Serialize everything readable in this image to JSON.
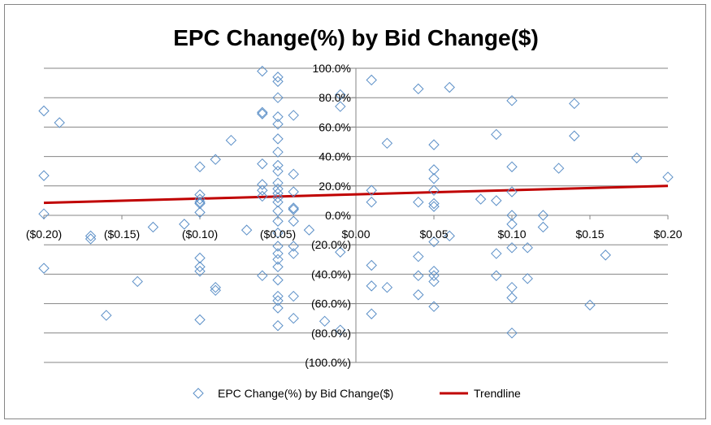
{
  "chart_data": {
    "type": "scatter",
    "title": "EPC Change(%) by Bid Change($)",
    "xlabel": "",
    "ylabel": "",
    "xlim": [
      -0.2,
      0.2
    ],
    "ylim": [
      -100,
      100
    ],
    "x_ticks": [
      {
        "value": -0.2,
        "label": "($0.20)"
      },
      {
        "value": -0.15,
        "label": "($0.15)"
      },
      {
        "value": -0.1,
        "label": "($0.10)"
      },
      {
        "value": -0.05,
        "label": "($0.05)"
      },
      {
        "value": 0.0,
        "label": "$0.00"
      },
      {
        "value": 0.05,
        "label": "$0.05"
      },
      {
        "value": 0.1,
        "label": "$0.10"
      },
      {
        "value": 0.15,
        "label": "$0.15"
      },
      {
        "value": 0.2,
        "label": "$0.20"
      }
    ],
    "y_ticks": [
      {
        "value": 100,
        "label": "100.0%"
      },
      {
        "value": 80,
        "label": "80.0%"
      },
      {
        "value": 60,
        "label": "60.0%"
      },
      {
        "value": 40,
        "label": "40.0%"
      },
      {
        "value": 20,
        "label": "20.0%"
      },
      {
        "value": 0,
        "label": "0.0%"
      },
      {
        "value": -20,
        "label": "(20.0%)"
      },
      {
        "value": -40,
        "label": "(40.0%)"
      },
      {
        "value": -60,
        "label": "(60.0%)"
      },
      {
        "value": -80,
        "label": "(80.0%)"
      },
      {
        "value": -100,
        "label": "(100.0%)"
      }
    ],
    "grid": "horizontal",
    "legend_position": "bottom",
    "series": [
      {
        "name": "EPC Change(%) by Bid Change($)",
        "kind": "scatter",
        "marker": "diamond-outline",
        "color": "#5b8fc7",
        "points": [
          [
            -0.2,
            71
          ],
          [
            -0.19,
            63
          ],
          [
            -0.2,
            27
          ],
          [
            -0.2,
            1
          ],
          [
            -0.2,
            -36
          ],
          [
            -0.17,
            -14
          ],
          [
            -0.17,
            -16
          ],
          [
            -0.16,
            -68
          ],
          [
            -0.14,
            -45
          ],
          [
            -0.13,
            -8
          ],
          [
            -0.11,
            -6
          ],
          [
            -0.1,
            33
          ],
          [
            -0.1,
            14
          ],
          [
            -0.1,
            11
          ],
          [
            -0.1,
            9
          ],
          [
            -0.1,
            8
          ],
          [
            -0.1,
            2
          ],
          [
            -0.1,
            -29
          ],
          [
            -0.1,
            -35
          ],
          [
            -0.1,
            -38
          ],
          [
            -0.1,
            -71
          ],
          [
            -0.09,
            38
          ],
          [
            -0.09,
            -49
          ],
          [
            -0.09,
            -51
          ],
          [
            -0.08,
            51
          ],
          [
            -0.07,
            -10
          ],
          [
            -0.06,
            98
          ],
          [
            -0.06,
            70
          ],
          [
            -0.06,
            69
          ],
          [
            -0.06,
            35
          ],
          [
            -0.06,
            21
          ],
          [
            -0.06,
            17
          ],
          [
            -0.06,
            13
          ],
          [
            -0.06,
            -41
          ],
          [
            -0.05,
            94
          ],
          [
            -0.05,
            91
          ],
          [
            -0.05,
            80
          ],
          [
            -0.05,
            67
          ],
          [
            -0.05,
            62
          ],
          [
            -0.05,
            52
          ],
          [
            -0.05,
            43
          ],
          [
            -0.05,
            34
          ],
          [
            -0.05,
            30
          ],
          [
            -0.05,
            22
          ],
          [
            -0.05,
            18
          ],
          [
            -0.05,
            15
          ],
          [
            -0.05,
            12
          ],
          [
            -0.05,
            9
          ],
          [
            -0.05,
            3
          ],
          [
            -0.05,
            -4
          ],
          [
            -0.05,
            -12
          ],
          [
            -0.05,
            -21
          ],
          [
            -0.05,
            -26
          ],
          [
            -0.05,
            -30
          ],
          [
            -0.05,
            -35
          ],
          [
            -0.05,
            -44
          ],
          [
            -0.05,
            -55
          ],
          [
            -0.05,
            -58
          ],
          [
            -0.05,
            -63
          ],
          [
            -0.05,
            -75
          ],
          [
            -0.04,
            68
          ],
          [
            -0.04,
            28
          ],
          [
            -0.04,
            16
          ],
          [
            -0.04,
            5
          ],
          [
            -0.04,
            4
          ],
          [
            -0.04,
            -4
          ],
          [
            -0.04,
            -21
          ],
          [
            -0.04,
            -26
          ],
          [
            -0.04,
            -55
          ],
          [
            -0.04,
            -70
          ],
          [
            -0.03,
            -10
          ],
          [
            -0.02,
            -72
          ],
          [
            -0.01,
            82
          ],
          [
            -0.01,
            74
          ],
          [
            -0.01,
            -78
          ],
          [
            -0.01,
            -25
          ],
          [
            0.01,
            92
          ],
          [
            0.01,
            17
          ],
          [
            0.01,
            9
          ],
          [
            0.01,
            -34
          ],
          [
            0.01,
            -48
          ],
          [
            0.01,
            -67
          ],
          [
            0.02,
            49
          ],
          [
            0.02,
            -49
          ],
          [
            0.04,
            86
          ],
          [
            0.04,
            9
          ],
          [
            0.04,
            -28
          ],
          [
            0.04,
            -41
          ],
          [
            0.04,
            -54
          ],
          [
            0.05,
            48
          ],
          [
            0.05,
            31
          ],
          [
            0.05,
            25
          ],
          [
            0.05,
            17
          ],
          [
            0.05,
            8
          ],
          [
            0.05,
            6
          ],
          [
            0.05,
            -18
          ],
          [
            0.05,
            -38
          ],
          [
            0.05,
            -41
          ],
          [
            0.05,
            -45
          ],
          [
            0.05,
            -62
          ],
          [
            0.06,
            87
          ],
          [
            0.06,
            -14
          ],
          [
            0.08,
            11
          ],
          [
            0.09,
            55
          ],
          [
            0.09,
            10
          ],
          [
            0.09,
            -26
          ],
          [
            0.09,
            -41
          ],
          [
            0.1,
            78
          ],
          [
            0.1,
            33
          ],
          [
            0.1,
            16
          ],
          [
            0.1,
            0
          ],
          [
            0.1,
            -6
          ],
          [
            0.1,
            -22
          ],
          [
            0.1,
            -49
          ],
          [
            0.1,
            -56
          ],
          [
            0.1,
            -80
          ],
          [
            0.11,
            -22
          ],
          [
            0.11,
            -43
          ],
          [
            0.12,
            0
          ],
          [
            0.12,
            -8
          ],
          [
            0.13,
            32
          ],
          [
            0.14,
            76
          ],
          [
            0.14,
            54
          ],
          [
            0.15,
            -61
          ],
          [
            0.16,
            -27
          ],
          [
            0.18,
            39
          ],
          [
            0.2,
            26
          ]
        ]
      },
      {
        "name": "Trendline",
        "kind": "line",
        "color": "#c00000",
        "points": [
          [
            -0.2,
            8.5
          ],
          [
            0.2,
            20
          ]
        ]
      }
    ]
  }
}
